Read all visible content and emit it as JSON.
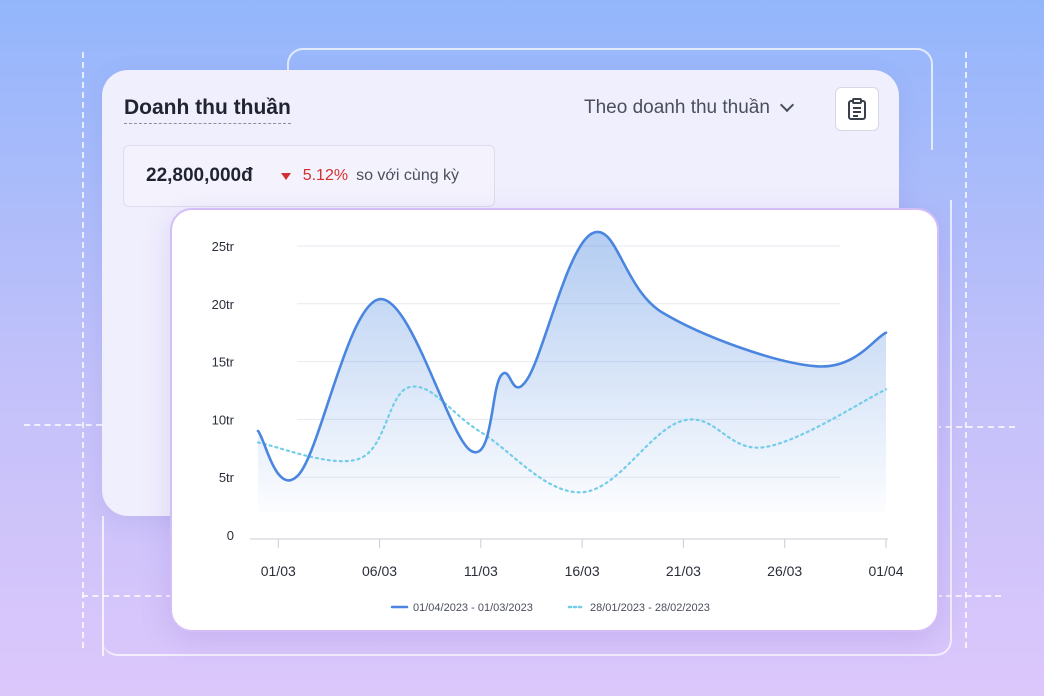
{
  "card": {
    "title": "Doanh thu thuần",
    "filter_label": "Theo doanh thu thuần",
    "metric_value": "22,800,000đ",
    "metric_change": "5.12%",
    "metric_compare": "so với cùng kỳ",
    "change_direction": "down"
  },
  "icons": {
    "filter_dropdown": "chevron-down-icon",
    "report": "clipboard-icon",
    "change": "triangle-down-icon"
  },
  "colors": {
    "primary_series": "#4a86df",
    "secondary_series": "#73cde8",
    "negative": "#d32f2f",
    "title": "#1f2430"
  },
  "chart_data": {
    "type": "line",
    "y_ticks": [
      "0",
      "5tr",
      "10tr",
      "15tr",
      "20tr",
      "25tr"
    ],
    "y_tick_values": [
      0,
      5,
      10,
      15,
      20,
      25
    ],
    "ylim": [
      0,
      25
    ],
    "x_ticks": [
      "01/03",
      "06/03",
      "11/03",
      "16/03",
      "21/03",
      "26/03",
      "01/04"
    ],
    "x_tick_values": [
      1,
      6,
      11,
      16,
      21,
      26,
      31
    ],
    "xlim": [
      0,
      31
    ],
    "grid": true,
    "legend_position": "bottom",
    "series": [
      {
        "name": "01/04/2023 - 01/03/2023",
        "style": "solid",
        "fill": true,
        "x": [
          0,
          2,
          6,
          10.5,
          12,
          13.3,
          16.5,
          20,
          27.5,
          31
        ],
        "values": [
          9.0,
          5.2,
          20.4,
          7.3,
          13.8,
          13.5,
          26.1,
          19.2,
          14.6,
          17.5
        ]
      },
      {
        "name": "28/01/2023 - 28/02/2023",
        "style": "dotted",
        "fill": false,
        "x": [
          0,
          5,
          7.5,
          11,
          16,
          21,
          25,
          31
        ],
        "values": [
          8.0,
          6.6,
          12.8,
          8.9,
          3.7,
          9.9,
          7.6,
          12.6
        ]
      }
    ]
  }
}
